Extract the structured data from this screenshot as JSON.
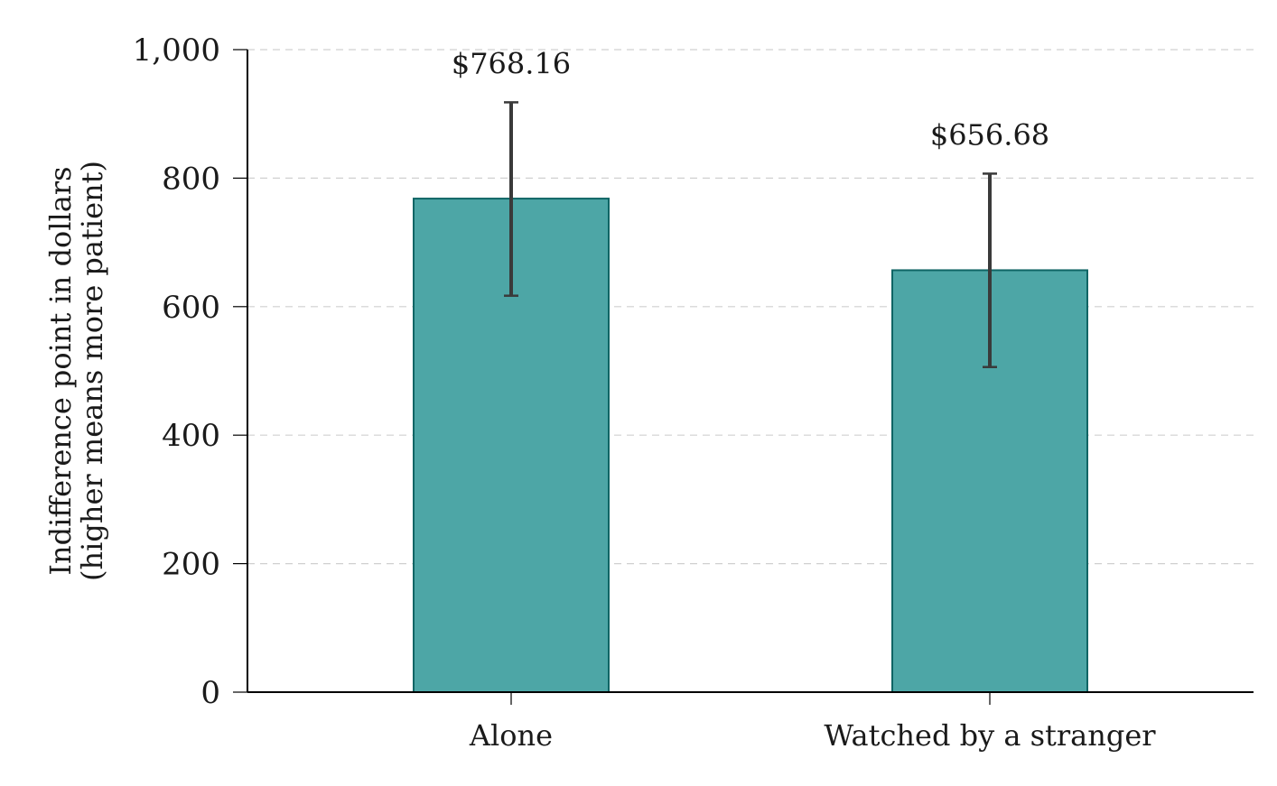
{
  "chart_data": {
    "type": "bar",
    "title": "",
    "xlabel": "",
    "ylabel_lines": [
      "Indifference point in dollars",
      "(higher means more patient)"
    ],
    "categories": [
      "Alone",
      "Watched by a stranger"
    ],
    "values": [
      768.16,
      656.68
    ],
    "error_bars": [
      {
        "low": 617,
        "high": 918
      },
      {
        "low": 506,
        "high": 807
      }
    ],
    "data_labels": [
      "$768.16",
      "$656.68"
    ],
    "ylim": [
      0,
      1000
    ],
    "yticks": [
      0,
      200,
      400,
      600,
      800,
      1000
    ],
    "ytick_labels": [
      "0",
      "200",
      "400",
      "600",
      "800",
      "1,000"
    ],
    "grid": "horizontal dashed",
    "legend": "none",
    "colors": {
      "bar_fill": "#4da6a6",
      "bar_stroke": "#0f6565",
      "error_bar": "#3a3a3a",
      "grid": "#d0d0d0",
      "axis": "#000000"
    }
  }
}
